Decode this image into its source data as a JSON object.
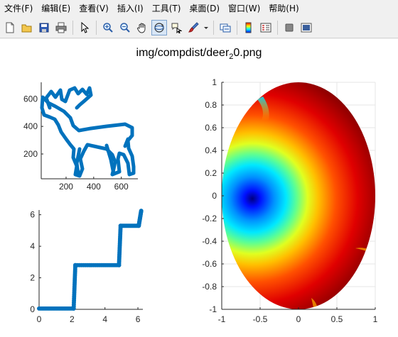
{
  "menu": [
    "文件(F)",
    "编辑(E)",
    "查看(V)",
    "插入(I)",
    "工具(T)",
    "桌面(D)",
    "窗口(W)",
    "帮助(H)"
  ],
  "toolbar": {
    "buttons": [
      "new-file-icon",
      "open-folder-icon",
      "save-icon",
      "print-icon",
      "select-cursor-icon",
      "zoom-in-icon",
      "zoom-out-icon",
      "pan-hand-icon",
      "rotate-3d-icon",
      "data-cursor-icon",
      "brush-icon",
      "brush-dropdown-icon",
      "link-plot-icon",
      "colorbar-icon",
      "legend-icon",
      "hide-plot-tools-icon",
      "show-plot-tools-icon"
    ]
  },
  "figure_title": {
    "prefix": "img/compdist/deer",
    "subscript": "2",
    "suffix": "0.png"
  },
  "chart_data": [
    {
      "type": "scatter",
      "name_hint": "deer outline",
      "xlim": [
        20,
        720
      ],
      "ylim": [
        20,
        720
      ],
      "xticks": [
        "200",
        "400",
        "600"
      ],
      "yticks": [
        "200",
        "400",
        "600"
      ],
      "color": "#0072bd"
    },
    {
      "type": "scatter",
      "xlim": [
        0,
        6.3
      ],
      "ylim": [
        0,
        6.3
      ],
      "xticks": [
        "0",
        "2",
        "4",
        "6"
      ],
      "yticks": [
        "0",
        "2",
        "4",
        "6"
      ],
      "color": "#0072bd",
      "steps": [
        {
          "x": [
            0.0,
            2.1
          ],
          "y": 0.05
        },
        {
          "x": [
            2.1,
            2.2
          ],
          "y": [
            0.05,
            2.8
          ]
        },
        {
          "x": [
            2.2,
            4.85
          ],
          "y": 2.8
        },
        {
          "x": [
            4.85,
            4.95
          ],
          "y": [
            2.8,
            5.3
          ]
        },
        {
          "x": [
            4.95,
            6.05
          ],
          "y": 5.3
        },
        {
          "x": [
            6.05,
            6.2
          ],
          "y": [
            5.3,
            6.25
          ]
        }
      ]
    },
    {
      "type": "heatmap",
      "colormap": "jet",
      "xlim": [
        -1,
        1
      ],
      "ylim": [
        -1,
        1
      ],
      "xticks": [
        "-1",
        "-0.5",
        "0",
        "0.5",
        "1"
      ],
      "yticks": [
        "1",
        "0.8",
        "0.6",
        "0.4",
        "0.2",
        "0",
        "-0.2",
        "-0.4",
        "-0.6",
        "-0.8",
        "-1"
      ],
      "minimum_near": [
        -0.57,
        -0.02
      ],
      "grid": true
    }
  ]
}
